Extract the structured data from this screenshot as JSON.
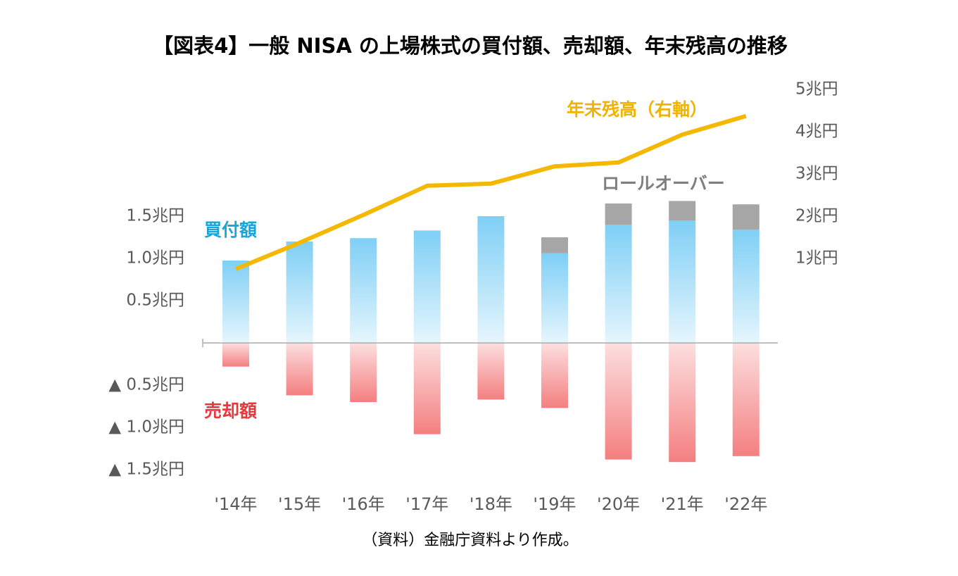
{
  "chart_data": {
    "type": "bar",
    "title": "【図表4】一般 NISA の上場株式の買付額、売却額、年末残高の推移",
    "note": "（資料）金融庁資料より作成。",
    "categories": [
      "'14年",
      "'15年",
      "'16年",
      "'17年",
      "'18年",
      "'19年",
      "'20年",
      "'21年",
      "'22年"
    ],
    "series": [
      {
        "name": "買付額",
        "color": "#7fcff5",
        "label_color": "#1aa4d8",
        "values": [
          0.975,
          1.2,
          1.24,
          1.33,
          1.5,
          1.06,
          1.4,
          1.45,
          1.34
        ]
      },
      {
        "name": "ロールオーバー",
        "color": "#a6a6a6",
        "label_color": "#7f7f7f",
        "stack": "買付額",
        "values": [
          null,
          null,
          null,
          null,
          null,
          0.19,
          0.25,
          0.23,
          0.3
        ]
      },
      {
        "name": "売却額",
        "color": "#f47f80",
        "label_color": "#e8383d",
        "values": [
          -0.28,
          -0.62,
          -0.7,
          -1.08,
          -0.67,
          -0.77,
          -1.38,
          -1.41,
          -1.34
        ]
      },
      {
        "name": "年末残高（右軸）",
        "type": "line",
        "axis": "y2",
        "color": "#f5b800",
        "label_color": "#f0b400",
        "values": [
          0.75,
          1.37,
          2.03,
          2.72,
          2.77,
          3.18,
          3.27,
          3.93,
          4.37
        ]
      }
    ],
    "ylim": [
      -1.5,
      3.0
    ],
    "yticks": [
      {
        "value": -1.5,
        "label": "▲ 1.5兆円"
      },
      {
        "value": -1.0,
        "label": "▲ 1.0兆円"
      },
      {
        "value": -0.5,
        "label": "▲ 0.5兆円"
      },
      {
        "value": 0.5,
        "label": "0.5兆円"
      },
      {
        "value": 1.0,
        "label": "1.0兆円"
      },
      {
        "value": 1.5,
        "label": "1.5兆円"
      }
    ],
    "y2lim": [
      -4,
      5
    ],
    "y2ticks": [
      {
        "value": 1,
        "label": "1兆円"
      },
      {
        "value": 2,
        "label": "2兆円"
      },
      {
        "value": 3,
        "label": "3兆円"
      },
      {
        "value": 4,
        "label": "4兆円"
      },
      {
        "value": 5,
        "label": "5兆円"
      }
    ],
    "grid": false
  }
}
